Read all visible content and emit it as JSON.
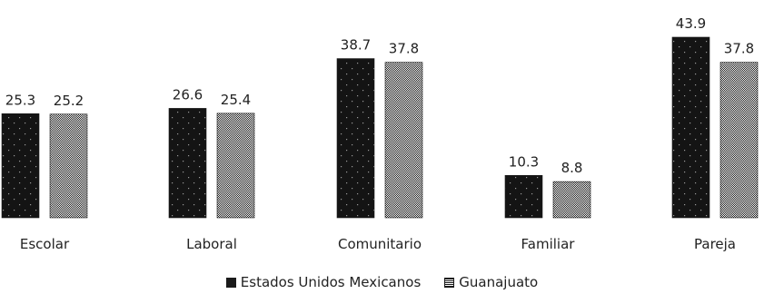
{
  "chart_data": {
    "type": "bar",
    "categories": [
      "Escolar",
      "Laboral",
      "Comunitario",
      "Familiar",
      "Pareja"
    ],
    "series": [
      {
        "name": "Estados Unidos Mexicanos",
        "values": [
          25.3,
          26.6,
          38.7,
          10.3,
          43.9
        ],
        "color": "#1a1a1a",
        "pattern": "dotted-dark"
      },
      {
        "name": "Guanajuato",
        "values": [
          25.2,
          25.4,
          37.8,
          8.8,
          37.8
        ],
        "color": "#1a1a1a",
        "pattern": "checkered"
      }
    ],
    "value_labels": [
      [
        "25.3",
        "26.6",
        "38.7",
        "10.3",
        "43.9"
      ],
      [
        "25.2",
        "25.4",
        "37.8",
        "8.8",
        "37.8"
      ]
    ],
    "title": "",
    "xlabel": "",
    "ylabel": "",
    "ylim": [
      0,
      45
    ],
    "grid": false,
    "legend_position": "bottom-center"
  }
}
